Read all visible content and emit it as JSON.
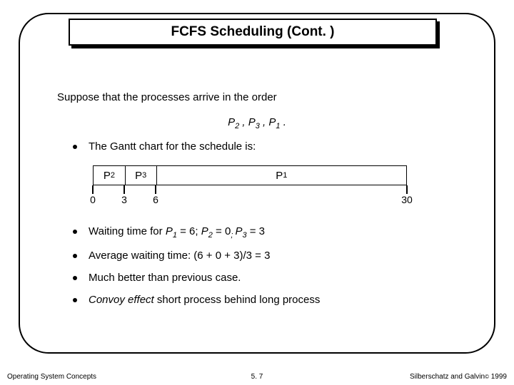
{
  "title": "FCFS Scheduling (Cont. )",
  "intro": "Suppose that the processes arrive in the order",
  "order": {
    "pre": "P",
    "s1": "2",
    "sep": " , ",
    "s2": "3",
    "s3": "1",
    "tail": " ."
  },
  "bullet_gantt": "The Gantt chart for the schedule is:",
  "gantt": {
    "segments": [
      {
        "label": "P",
        "sub": "2",
        "width_pct": 10
      },
      {
        "label": "P",
        "sub": "3",
        "width_pct": 10
      },
      {
        "label": "P",
        "sub": "1",
        "width_pct": 80
      }
    ],
    "ticks": [
      {
        "pos_pct": 0,
        "label": "0"
      },
      {
        "pos_pct": 10,
        "label": "3"
      },
      {
        "pos_pct": 20,
        "label": "6"
      },
      {
        "pos_pct": 100,
        "label": "30"
      }
    ]
  },
  "b1": {
    "pre": "Waiting time for ",
    "p": "P",
    "s1": "1",
    "eq1": " = 6; ",
    "s2": "2",
    "eq2": " = 0",
    "semi": "; ",
    "s3": "3",
    "eq3": " = 3"
  },
  "b2": "Average waiting time:   (6 + 0 + 3)/3 = 3",
  "b3": "Much better than previous case.",
  "b4": {
    "em": "Convoy effect",
    "rest": " short process behind long process"
  },
  "footer": {
    "left": "Operating System Concepts",
    "center": "5. 7",
    "right_pre": "Silberschatz and Galvin",
    "right_post": " 1999",
    "copyright": "©"
  }
}
